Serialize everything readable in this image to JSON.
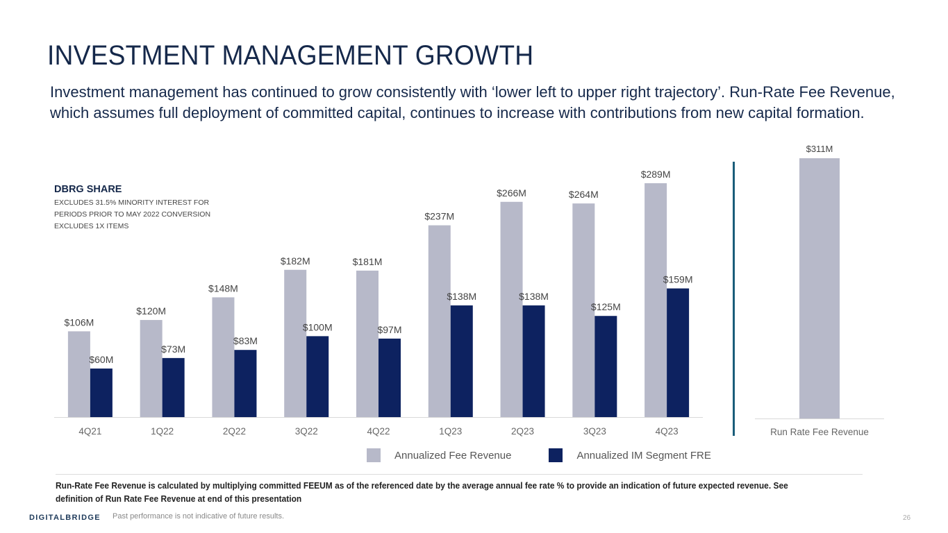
{
  "title": "INVESTMENT MANAGEMENT GROWTH",
  "subtitle": "Investment management has continued to grow consistently with ‘lower left to upper right trajectory’. Run-Rate Fee Revenue, which assumes full deployment of committed capital, continues to increase with contributions from new capital formation.",
  "note": {
    "heading": "DBRG SHARE",
    "lines": [
      "EXCLUDES 31.5% MINORITY INTEREST FOR",
      "PERIODS PRIOR TO MAY 2022 CONVERSION",
      "EXCLUDES 1X ITEMS"
    ]
  },
  "colors": {
    "fee_revenue": "#b7b9c9",
    "im_segment_fre": "#0d2260",
    "divider": "#1a5d7a",
    "title": "#15284a"
  },
  "chart_data": [
    {
      "type": "bar",
      "title": "",
      "xlabel": "",
      "ylabel": "",
      "categories": [
        "4Q21",
        "1Q22",
        "2Q22",
        "3Q22",
        "4Q22",
        "1Q23",
        "2Q23",
        "3Q23",
        "4Q23"
      ],
      "series": [
        {
          "name": "Annualized Fee Revenue",
          "values": [
            106,
            120,
            148,
            182,
            181,
            237,
            266,
            264,
            289
          ],
          "labels": [
            "$106M",
            "$120M",
            "$148M",
            "$182M",
            "$181M",
            "$237M",
            "$266M",
            "$264M",
            "$289M"
          ],
          "color": "#b7b9c9"
        },
        {
          "name": "Annualized IM Segment FRE",
          "values": [
            60,
            73,
            83,
            100,
            97,
            138,
            138,
            125,
            159
          ],
          "labels": [
            "$60M",
            "$73M",
            "$83M",
            "$100M",
            "$97M",
            "$138M",
            "$138M",
            "$125M",
            "$159M"
          ],
          "color": "#0d2260"
        }
      ],
      "units": "$M",
      "ylim": [
        0,
        320
      ],
      "grid": false,
      "legend": "bottom"
    },
    {
      "type": "bar",
      "title": "",
      "categories": [
        "Run Rate Fee Revenue"
      ],
      "series": [
        {
          "name": "Run Rate Fee Revenue",
          "values": [
            311
          ],
          "labels": [
            "$311M"
          ],
          "color": "#b7b9c9"
        }
      ],
      "units": "$M",
      "ylim": [
        0,
        311
      ],
      "grid": false
    }
  ],
  "legend": [
    {
      "label": "Annualized Fee Revenue",
      "color": "#b7b9c9"
    },
    {
      "label": "Annualized IM Segment FRE",
      "color": "#0d2260"
    }
  ],
  "footnote": "Run-Rate Fee Revenue is calculated by multiplying committed FEEUM as of the referenced date by the average annual fee rate % to provide an indication of future expected revenue. See definition of Run Rate Fee Revenue at end of this presentation",
  "footer": {
    "logo": "DIGITALBRIDGE",
    "disclaimer": "Past performance is not indicative of future results.",
    "page_number": "26"
  }
}
